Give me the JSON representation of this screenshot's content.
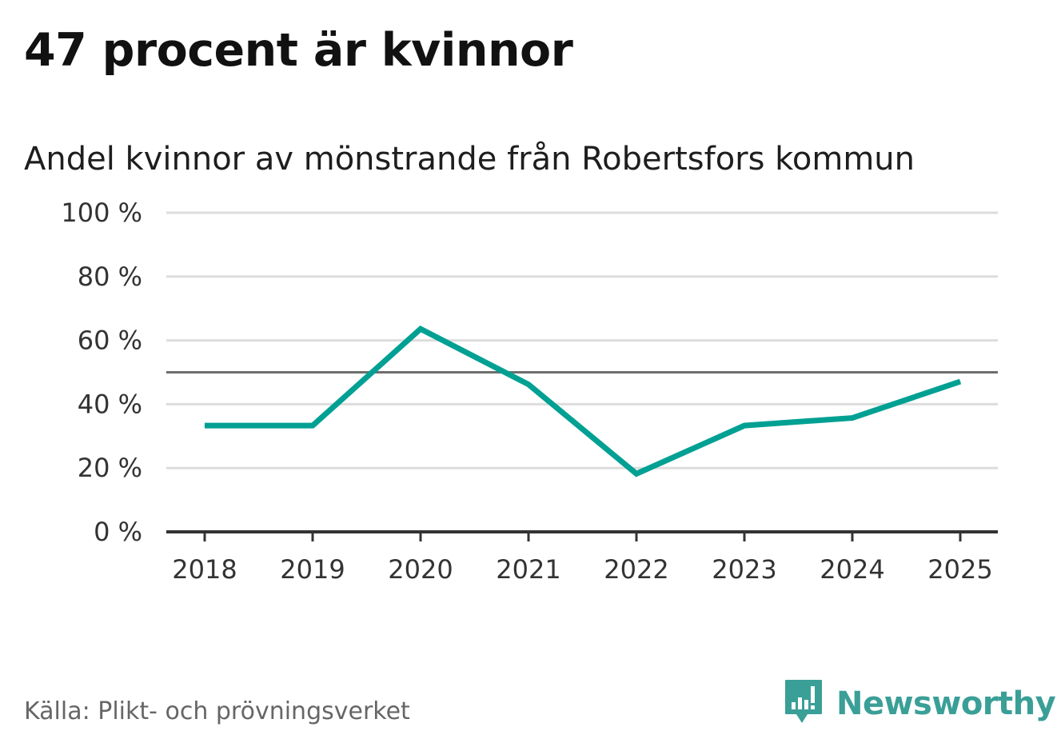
{
  "title": "47 procent är kvinnor",
  "subtitle": "Andel kvinnor av mönstrande från Robertsfors kommun",
  "source": "Källa: Plikt- och prövningsverket",
  "brand": {
    "name": "Newsworthy",
    "icon": "newsworthy-logo-icon",
    "color": "#3a9f97"
  },
  "chart_data": {
    "type": "line",
    "title": "47 procent är kvinnor",
    "subtitle": "Andel kvinnor av mönstrande från Robertsfors kommun",
    "xlabel": "",
    "ylabel": "",
    "x": [
      "2018",
      "2019",
      "2020",
      "2021",
      "2022",
      "2023",
      "2024",
      "2025"
    ],
    "series": [
      {
        "values": [
          33.3,
          33.3,
          63.6,
          46.2,
          18.2,
          33.3,
          35.7,
          47.1
        ],
        "color": "#00a093"
      }
    ],
    "reference_line": {
      "value": 50,
      "color": "#6e6e6e"
    },
    "ylim": [
      0,
      100
    ],
    "yticks": [
      0,
      20,
      40,
      60,
      80,
      100
    ],
    "ytick_labels": [
      "0 %",
      "20 %",
      "40 %",
      "60 %",
      "80 %",
      "100 %"
    ],
    "grid": true,
    "gridline_color": "#dddddd",
    "legend": "none"
  }
}
